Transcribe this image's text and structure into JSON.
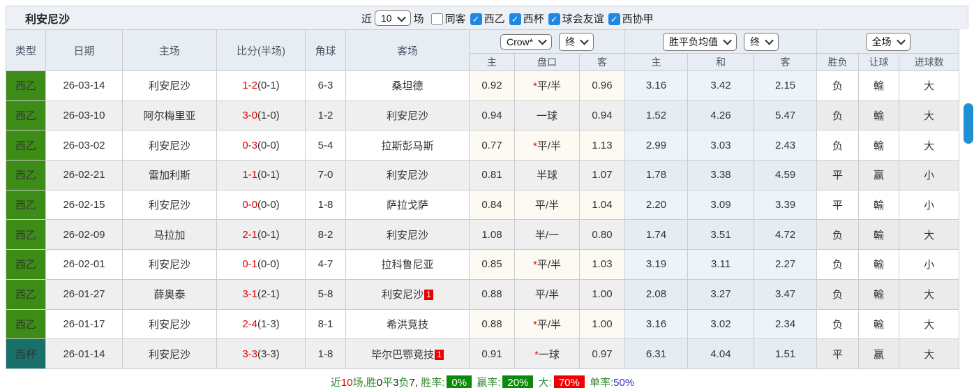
{
  "topbar": {
    "title": "利安尼沙",
    "near_label": "近",
    "recent_count": "10",
    "matches_label": "场",
    "filters": [
      {
        "label": "同客",
        "checked": false
      },
      {
        "label": "西乙",
        "checked": true
      },
      {
        "label": "西杯",
        "checked": true
      },
      {
        "label": "球会友谊",
        "checked": true
      },
      {
        "label": "西协甲",
        "checked": true
      }
    ]
  },
  "table": {
    "main_headers": [
      "类型",
      "日期",
      "主场",
      "比分(半场)",
      "角球",
      "客场"
    ],
    "group_selects": {
      "odds_company": "Crow*",
      "odds_time": "终",
      "avg_label": "胜平负均值",
      "avg_time": "终",
      "scope": "全场"
    },
    "sub_headers": [
      "主",
      "盘口",
      "客",
      "主",
      "和",
      "客",
      "胜负",
      "让球",
      "进球数"
    ]
  },
  "rows": [
    {
      "type": "西乙",
      "type_color": "green",
      "date": "26-03-14",
      "home": "利安尼沙",
      "home_self": true,
      "score": "1-2",
      "half": "(0-1)",
      "corner": "6-3",
      "away": "桑坦德",
      "away_self": false,
      "away_badge": "",
      "crow_home": "0.92",
      "handicap_star": true,
      "handicap": "平/半",
      "crow_away": "0.96",
      "avg_home": "3.16",
      "avg_draw": "3.42",
      "avg_away": "2.15",
      "wdl": "负",
      "wdl_color": "green",
      "let_result": "輸",
      "let_color": "green",
      "goals": "大",
      "goals_color": "red"
    },
    {
      "type": "西乙",
      "type_color": "green",
      "date": "26-03-10",
      "home": "阿尔梅里亚",
      "home_self": false,
      "score": "3-0",
      "half": "(1-0)",
      "corner": "1-2",
      "away": "利安尼沙",
      "away_self": true,
      "away_badge": "",
      "crow_home": "0.94",
      "handicap_star": false,
      "handicap": "一球",
      "crow_away": "0.94",
      "avg_home": "1.52",
      "avg_draw": "4.26",
      "avg_away": "5.47",
      "wdl": "负",
      "wdl_color": "green",
      "let_result": "輸",
      "let_color": "green",
      "goals": "大",
      "goals_color": "red"
    },
    {
      "type": "西乙",
      "type_color": "green",
      "date": "26-03-02",
      "home": "利安尼沙",
      "home_self": true,
      "score": "0-3",
      "half": "(0-0)",
      "corner": "5-4",
      "away": "拉斯彭马斯",
      "away_self": false,
      "away_badge": "",
      "crow_home": "0.77",
      "handicap_star": true,
      "handicap": "平/半",
      "crow_away": "1.13",
      "avg_home": "2.99",
      "avg_draw": "3.03",
      "avg_away": "2.43",
      "wdl": "负",
      "wdl_color": "green",
      "let_result": "輸",
      "let_color": "green",
      "goals": "大",
      "goals_color": "red"
    },
    {
      "type": "西乙",
      "type_color": "green",
      "date": "26-02-21",
      "home": "雷加利斯",
      "home_self": false,
      "score": "1-1",
      "half": "(0-1)",
      "corner": "7-0",
      "away": "利安尼沙",
      "away_self": true,
      "away_badge": "",
      "crow_home": "0.81",
      "handicap_star": false,
      "handicap": "半球",
      "crow_away": "1.07",
      "avg_home": "1.78",
      "avg_draw": "3.38",
      "avg_away": "4.59",
      "wdl": "平",
      "wdl_color": "blue",
      "let_result": "赢",
      "let_color": "red",
      "goals": "小",
      "goals_color": "green"
    },
    {
      "type": "西乙",
      "type_color": "green",
      "date": "26-02-15",
      "home": "利安尼沙",
      "home_self": true,
      "score": "0-0",
      "half": "(0-0)",
      "corner": "1-8",
      "away": "萨拉戈萨",
      "away_self": false,
      "away_badge": "",
      "crow_home": "0.84",
      "handicap_star": false,
      "handicap": "平/半",
      "crow_away": "1.04",
      "avg_home": "2.20",
      "avg_draw": "3.09",
      "avg_away": "3.39",
      "wdl": "平",
      "wdl_color": "blue",
      "let_result": "輸",
      "let_color": "green",
      "goals": "小",
      "goals_color": "green"
    },
    {
      "type": "西乙",
      "type_color": "green",
      "date": "26-02-09",
      "home": "马拉加",
      "home_self": false,
      "score": "2-1",
      "half": "(0-1)",
      "corner": "8-2",
      "away": "利安尼沙",
      "away_self": true,
      "away_badge": "",
      "crow_home": "1.08",
      "handicap_star": false,
      "handicap": "半/一",
      "crow_away": "0.80",
      "avg_home": "1.74",
      "avg_draw": "3.51",
      "avg_away": "4.72",
      "wdl": "负",
      "wdl_color": "green",
      "let_result": "輸",
      "let_color": "green",
      "goals": "大",
      "goals_color": "red"
    },
    {
      "type": "西乙",
      "type_color": "green",
      "date": "26-02-01",
      "home": "利安尼沙",
      "home_self": true,
      "score": "0-1",
      "half": "(0-0)",
      "corner": "4-7",
      "away": "拉科鲁尼亚",
      "away_self": false,
      "away_badge": "",
      "crow_home": "0.85",
      "handicap_star": true,
      "handicap": "平/半",
      "crow_away": "1.03",
      "avg_home": "3.19",
      "avg_draw": "3.11",
      "avg_away": "2.27",
      "wdl": "负",
      "wdl_color": "green",
      "let_result": "輸",
      "let_color": "green",
      "goals": "小",
      "goals_color": "green"
    },
    {
      "type": "西乙",
      "type_color": "green",
      "date": "26-01-27",
      "home": "薛奥泰",
      "home_self": false,
      "score": "3-1",
      "half": "(2-1)",
      "corner": "5-8",
      "away": "利安尼沙",
      "away_self": true,
      "away_badge": "1",
      "crow_home": "0.88",
      "handicap_star": false,
      "handicap": "平/半",
      "crow_away": "1.00",
      "avg_home": "2.08",
      "avg_draw": "3.27",
      "avg_away": "3.47",
      "wdl": "负",
      "wdl_color": "green",
      "let_result": "輸",
      "let_color": "green",
      "goals": "大",
      "goals_color": "red"
    },
    {
      "type": "西乙",
      "type_color": "green",
      "date": "26-01-17",
      "home": "利安尼沙",
      "home_self": true,
      "score": "2-4",
      "half": "(1-3)",
      "corner": "8-1",
      "away": "希洪竞技",
      "away_self": false,
      "away_badge": "",
      "crow_home": "0.88",
      "handicap_star": true,
      "handicap": "平/半",
      "crow_away": "1.00",
      "avg_home": "3.16",
      "avg_draw": "3.02",
      "avg_away": "2.34",
      "wdl": "负",
      "wdl_color": "green",
      "let_result": "輸",
      "let_color": "green",
      "goals": "大",
      "goals_color": "red"
    },
    {
      "type": "西杯",
      "type_color": "teal",
      "date": "26-01-14",
      "home": "利安尼沙",
      "home_self": true,
      "score": "3-3",
      "half": "(3-3)",
      "corner": "1-8",
      "away": "毕尔巴鄂竞技",
      "away_self": false,
      "away_badge": "1",
      "crow_home": "0.91",
      "handicap_star": true,
      "handicap": "一球",
      "crow_away": "0.97",
      "avg_home": "6.31",
      "avg_draw": "4.04",
      "avg_away": "1.51",
      "wdl": "平",
      "wdl_color": "blue",
      "let_result": "赢",
      "let_color": "red",
      "goals": "大",
      "goals_color": "red"
    }
  ],
  "summary": {
    "segments": [
      {
        "text": "近",
        "color": "green"
      },
      {
        "text": "10",
        "color": "red"
      },
      {
        "text": "场,胜",
        "color": "green"
      },
      {
        "text": "0",
        "color": "dark"
      },
      {
        "text": "平",
        "color": "green"
      },
      {
        "text": "3",
        "color": "dark"
      },
      {
        "text": "负",
        "color": "green"
      },
      {
        "text": "7, ",
        "color": "dark"
      },
      {
        "text": "胜率:",
        "color": "green"
      },
      {
        "text": "0%",
        "badge": "green"
      },
      {
        "text": " 赢率:",
        "color": "green"
      },
      {
        "text": "20%",
        "badge": "green"
      },
      {
        "text": " 大:",
        "color": "green"
      },
      {
        "text": "70%",
        "badge": "red"
      },
      {
        "text": " 单率:",
        "color": "green"
      },
      {
        "text": "50%",
        "color": "blue"
      }
    ]
  },
  "colors": {
    "league_green": "#3e8c18",
    "cup_teal": "#19706b",
    "self_team_green": "#4da34d",
    "score_red": "#e60000",
    "result_green": "#318831",
    "result_blue": "#3333cc",
    "result_red": "#e05555",
    "badge_green": "#0b8a0b",
    "badge_red": "#ee0000",
    "checkbox_blue": "#1e88e5",
    "scrollbar_blue": "#1e8fd2"
  }
}
